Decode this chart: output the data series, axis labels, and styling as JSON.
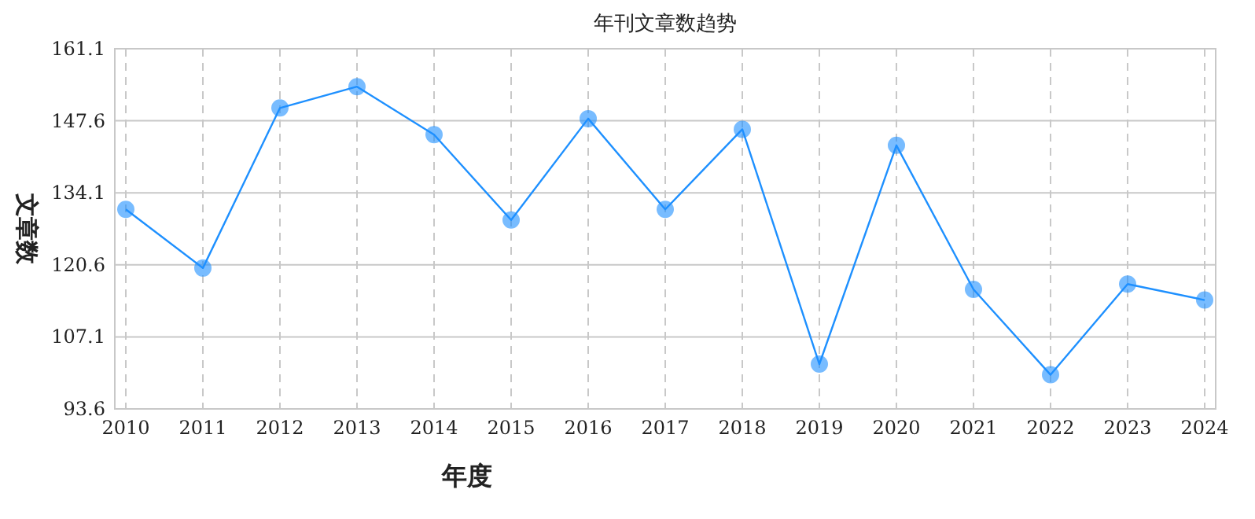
{
  "chart_data": {
    "type": "line",
    "title": "年刊文章数趋势",
    "xlabel": "年度",
    "ylabel": "文章数",
    "categories": [
      "2010",
      "2011",
      "2012",
      "2013",
      "2014",
      "2015",
      "2016",
      "2017",
      "2018",
      "2019",
      "2020",
      "2021",
      "2022",
      "2023",
      "2024"
    ],
    "series": [
      {
        "color": "#1e90ff",
        "values": [
          131,
          120,
          150,
          154,
          145,
          129,
          148,
          131,
          146,
          102,
          143,
          116,
          100,
          117,
          114
        ]
      }
    ],
    "ylim": [
      93.6,
      161.1
    ],
    "yticks": [
      93.6,
      107.1,
      120.6,
      134.1,
      147.6,
      161.1
    ],
    "grid": true,
    "marker": "circle",
    "line_style": "solid"
  }
}
